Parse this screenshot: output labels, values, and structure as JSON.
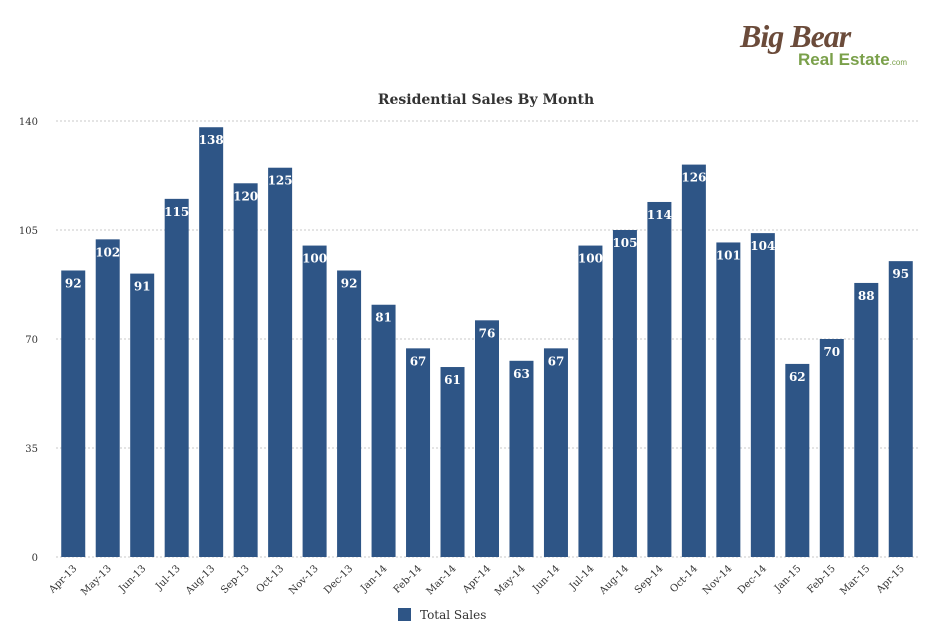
{
  "logo": {
    "line1": "Big Bear",
    "line2": "Real Estate",
    "suffix": ".com"
  },
  "colors": {
    "bar": "#2e5586",
    "grid": "#c8c8c8",
    "text": "#333333"
  },
  "chart_data": {
    "type": "bar",
    "title": "Residential Sales By Month",
    "xlabel": "",
    "ylabel": "",
    "ylim": [
      0,
      140
    ],
    "yticks": [
      0,
      35,
      70,
      105,
      140
    ],
    "grid": true,
    "grid_style": "dotted horizontal",
    "legend_position": "bottom",
    "categories": [
      "Apr-13",
      "May-13",
      "Jun-13",
      "Jul-13",
      "Aug-13",
      "Sep-13",
      "Oct-13",
      "Nov-13",
      "Dec-13",
      "Jan-14",
      "Feb-14",
      "Mar-14",
      "Apr-14",
      "May-14",
      "Jun-14",
      "Jul-14",
      "Aug-14",
      "Sep-14",
      "Oct-14",
      "Nov-14",
      "Dec-14",
      "Jan-15",
      "Feb-15",
      "Mar-15",
      "Apr-15"
    ],
    "series": [
      {
        "name": "Total Sales",
        "values": [
          92,
          102,
          91,
          115,
          138,
          120,
          125,
          100,
          92,
          81,
          67,
          61,
          76,
          63,
          67,
          100,
          105,
          114,
          126,
          101,
          104,
          62,
          70,
          88,
          95
        ]
      }
    ]
  }
}
